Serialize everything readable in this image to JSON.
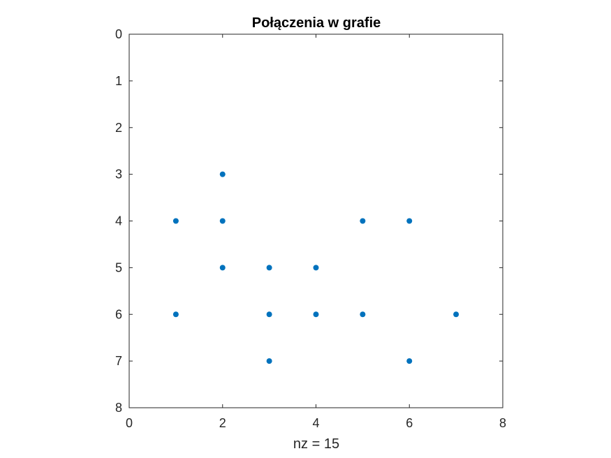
{
  "chart_data": {
    "type": "scatter",
    "title": "Połączenia w grafie",
    "xlabel": "nz = 15",
    "ylabel": "",
    "xlim": [
      0,
      8
    ],
    "ylim": [
      0,
      8
    ],
    "y_reversed": true,
    "grid": false,
    "x_ticks": [
      "0",
      "2",
      "4",
      "6",
      "8"
    ],
    "y_ticks": [
      "0",
      "1",
      "2",
      "3",
      "4",
      "5",
      "6",
      "7",
      "8"
    ],
    "marker_color": "#0072BD",
    "points": [
      {
        "x": 1,
        "y": 4
      },
      {
        "x": 1,
        "y": 6
      },
      {
        "x": 2,
        "y": 3
      },
      {
        "x": 2,
        "y": 4
      },
      {
        "x": 2,
        "y": 5
      },
      {
        "x": 3,
        "y": 5
      },
      {
        "x": 3,
        "y": 6
      },
      {
        "x": 3,
        "y": 7
      },
      {
        "x": 4,
        "y": 5
      },
      {
        "x": 4,
        "y": 6
      },
      {
        "x": 5,
        "y": 4
      },
      {
        "x": 5,
        "y": 6
      },
      {
        "x": 6,
        "y": 4
      },
      {
        "x": 6,
        "y": 7
      },
      {
        "x": 7,
        "y": 6
      }
    ]
  }
}
